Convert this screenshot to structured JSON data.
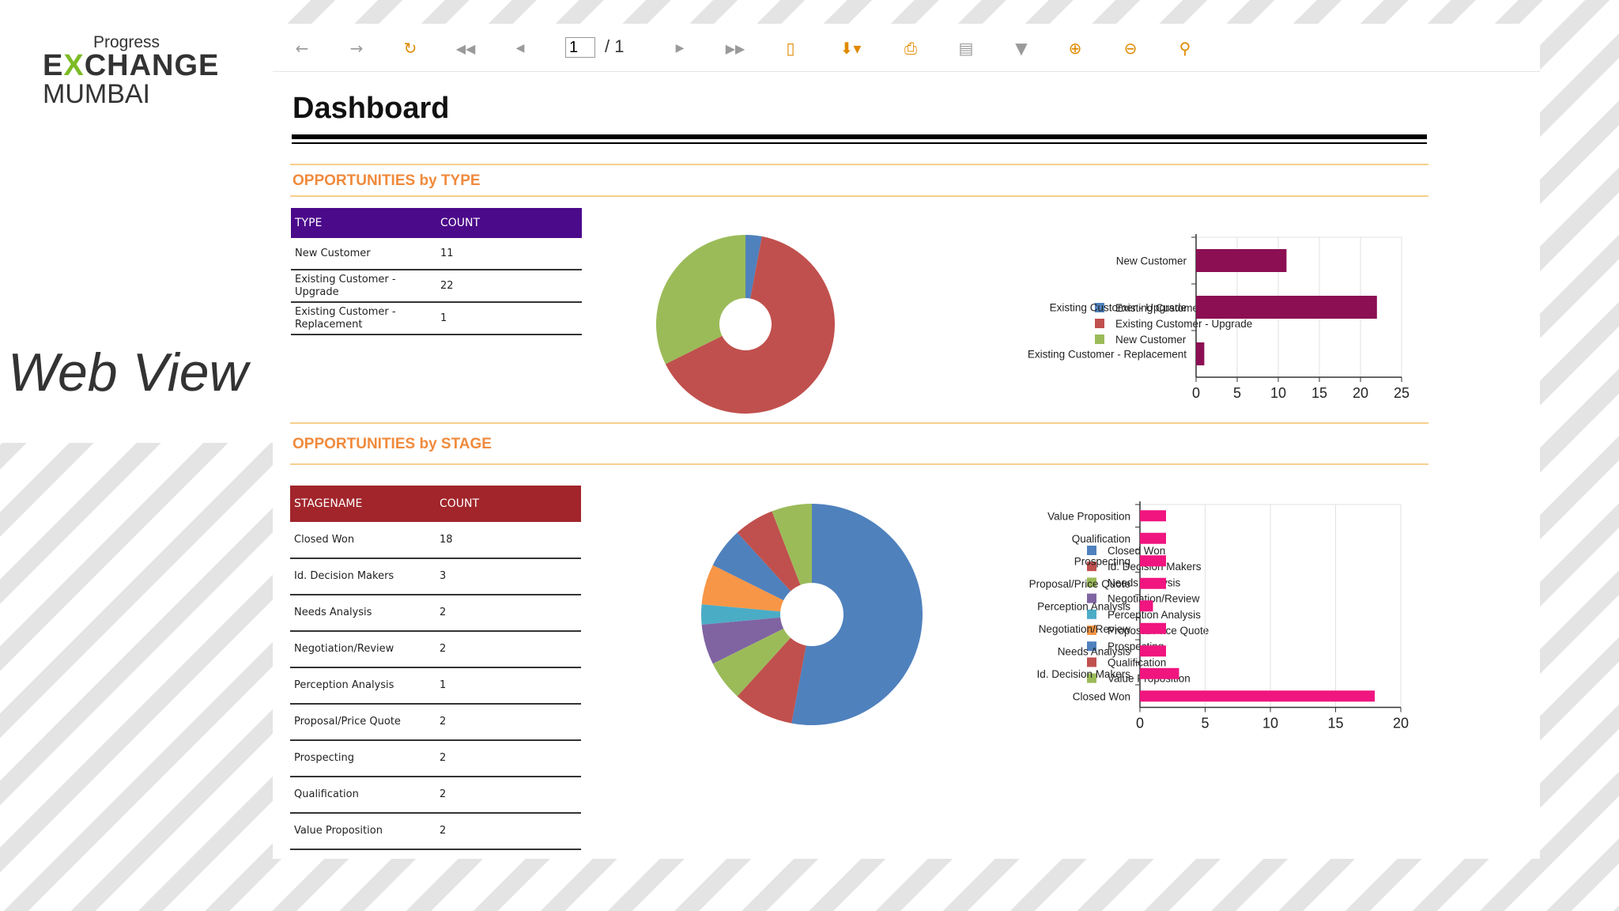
{
  "branding": {
    "logo_progress": "Progress",
    "logo_e": "E",
    "logo_x": "X",
    "logo_change": "CHANGE",
    "logo_city": "MUMBAI",
    "caption": "Web View"
  },
  "toolbar": {
    "page_current": "1",
    "page_total": "/ 1",
    "icons": [
      "undo-icon",
      "redo-icon",
      "refresh-icon",
      "first-page-icon",
      "prev-page-icon",
      "next-page-icon",
      "last-page-icon",
      "document-icon",
      "export-icon",
      "print-icon",
      "print-preview-icon",
      "filter-icon",
      "zoom-in-icon",
      "zoom-out-icon",
      "search-icon"
    ]
  },
  "report": {
    "title": "Dashboard",
    "section_type": "OPPORTUNITIES by TYPE",
    "section_stage": "OPPORTUNITIES by STAGE",
    "type_table": {
      "headers": [
        "TYPE",
        "COUNT"
      ],
      "rows": [
        {
          "label": "New Customer",
          "count": "11"
        },
        {
          "label": "Existing Customer - Upgrade",
          "count": "22"
        },
        {
          "label": "Existing Customer - Replacement",
          "count": "1"
        }
      ]
    },
    "stage_table": {
      "headers": [
        "STAGENAME",
        "COUNT"
      ],
      "rows": [
        {
          "label": "Closed Won",
          "count": "18"
        },
        {
          "label": "Id. Decision Makers",
          "count": "3"
        },
        {
          "label": "Needs Analysis",
          "count": "2"
        },
        {
          "label": "Negotiation/Review",
          "count": "2"
        },
        {
          "label": "Perception Analysis",
          "count": "1"
        },
        {
          "label": "Proposal/Price Quote",
          "count": "2"
        },
        {
          "label": "Prospecting",
          "count": "2"
        },
        {
          "label": "Qualification",
          "count": "2"
        },
        {
          "label": "Value Proposition",
          "count": "2"
        }
      ]
    }
  },
  "chart_data": [
    {
      "type": "pie",
      "donut": true,
      "categories": [
        "Existing Customer - Replacement",
        "Existing Customer - Upgrade",
        "New Customer"
      ],
      "values": [
        1,
        22,
        11
      ],
      "colors": [
        "#4f81bd",
        "#c0504d",
        "#9bbb59"
      ],
      "legend_placement": "right"
    },
    {
      "type": "bar",
      "orientation": "horizontal",
      "categories": [
        "New Customer",
        "Existing Customer - Upgrade",
        "Existing Customer - Replacement"
      ],
      "values": [
        11,
        22,
        1
      ],
      "xlim": [
        0,
        25
      ],
      "xticks": [
        0,
        5,
        10,
        15,
        20,
        25
      ],
      "color": "#8b0f52",
      "grid": true
    },
    {
      "type": "pie",
      "donut": true,
      "categories": [
        "Closed Won",
        "Id. Decision Makers",
        "Needs Analysis",
        "Negotiation/Review",
        "Perception Analysis",
        "Proposal/Price Quote",
        "Prospecting",
        "Qualification",
        "Value Proposition"
      ],
      "values": [
        18,
        3,
        2,
        2,
        1,
        2,
        2,
        2,
        2
      ],
      "colors": [
        "#4f81bd",
        "#c0504d",
        "#9bbb59",
        "#8064a2",
        "#4bacc6",
        "#f79646",
        "#4f81bd",
        "#c0504d",
        "#9bbb59"
      ],
      "legend_placement": "right"
    },
    {
      "type": "bar",
      "orientation": "horizontal",
      "categories": [
        "Value Proposition",
        "Qualification",
        "Prospecting",
        "Proposal/Price Quote",
        "Perception Analysis",
        "Negotiation/Review",
        "Needs Analysis",
        "Id. Decision Makers",
        "Closed Won"
      ],
      "values": [
        2,
        2,
        2,
        2,
        1,
        2,
        2,
        3,
        18
      ],
      "xlim": [
        0,
        20
      ],
      "xticks": [
        0,
        5,
        10,
        15,
        20
      ],
      "color": "#f0157f",
      "grid": true
    }
  ]
}
